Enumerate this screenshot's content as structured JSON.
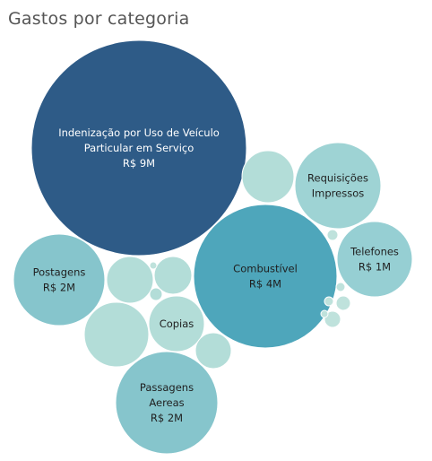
{
  "chart_data": {
    "type": "bubble",
    "title": "Gastos por categoria",
    "categories": [
      {
        "name": "Indenização por Uso de Veículo Particular em Serviço",
        "label_lines": [
          "Indenização por Uso de Veículo",
          "Particular em Serviço",
          "R$ 9M"
        ],
        "value": 9,
        "color": "#2e5b87",
        "text_color": "#ffffff"
      },
      {
        "name": "Combustível",
        "label_lines": [
          "Combustível",
          "R$ 4M"
        ],
        "value": 4,
        "color": "#4ea6bb",
        "text_color": "#1f1f1f"
      },
      {
        "name": "Postagens",
        "label_lines": [
          "Postagens",
          "R$ 2M"
        ],
        "value": 2,
        "color": "#86c5cc",
        "text_color": "#1f1f1f"
      },
      {
        "name": "Passagens Aereas",
        "label_lines": [
          "Passagens",
          "Aereas",
          "R$ 2M"
        ],
        "value": 2,
        "color": "#86c5cc",
        "text_color": "#1f1f1f"
      },
      {
        "name": "Telefones",
        "label_lines": [
          "Telefones",
          "R$ 1M"
        ],
        "value": 1,
        "color": "#96cfd3",
        "text_color": "#1f1f1f"
      },
      {
        "name": "Requisições Impressos",
        "label_lines": [
          "Requisições",
          "Impressos"
        ],
        "value": null,
        "color": "#9ed3d4",
        "text_color": "#1f1f1f"
      },
      {
        "name": "Copias",
        "label_lines": [
          "Copias"
        ],
        "value": null,
        "color": "#b3ddd8",
        "text_color": "#1f1f1f"
      },
      {
        "name": "",
        "label_lines": [],
        "value": null,
        "color": "#b3ddd8",
        "text_color": "#1f1f1f"
      },
      {
        "name": "",
        "label_lines": [],
        "value": null,
        "color": "#b3ddd8",
        "text_color": "#1f1f1f"
      },
      {
        "name": "",
        "label_lines": [],
        "value": null,
        "color": "#b3ddd8",
        "text_color": "#1f1f1f"
      },
      {
        "name": "",
        "label_lines": [],
        "value": null,
        "color": "#b3ddd8",
        "text_color": "#1f1f1f"
      },
      {
        "name": "",
        "label_lines": [],
        "value": null,
        "color": "#b3ddd8",
        "text_color": "#1f1f1f"
      },
      {
        "name": "",
        "label_lines": [],
        "value": null,
        "color": "#b3ddd8",
        "text_color": "#1f1f1f"
      },
      {
        "name": "",
        "label_lines": [],
        "value": null,
        "color": "#bfe2dc",
        "text_color": "#1f1f1f"
      },
      {
        "name": "",
        "label_lines": [],
        "value": null,
        "color": "#bfe2dc",
        "text_color": "#1f1f1f"
      },
      {
        "name": "",
        "label_lines": [],
        "value": null,
        "color": "#bfe2dc",
        "text_color": "#1f1f1f"
      },
      {
        "name": "",
        "label_lines": [],
        "value": null,
        "color": "#bfe2dc",
        "text_color": "#1f1f1f"
      },
      {
        "name": "",
        "label_lines": [],
        "value": null,
        "color": "#bfe2dc",
        "text_color": "#1f1f1f"
      },
      {
        "name": "",
        "label_lines": [],
        "value": null,
        "color": "#bfe2dc",
        "text_color": "#1f1f1f"
      },
      {
        "name": "",
        "label_lines": [],
        "value": null,
        "color": "#bfe2dc",
        "text_color": "#1f1f1f"
      }
    ],
    "units": "R$",
    "legend": "none"
  }
}
